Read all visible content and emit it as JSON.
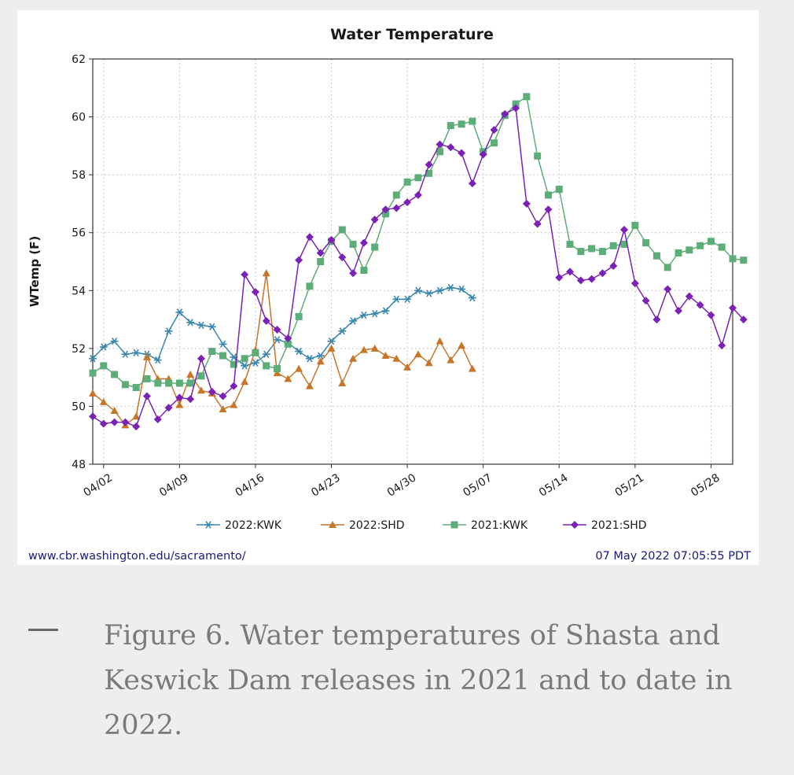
{
  "chart_data": {
    "type": "line",
    "title": "Water Temperature",
    "ylabel": "WTemp (F)",
    "xlabel": "",
    "ylim": [
      48,
      62
    ],
    "yticks": [
      48,
      50,
      52,
      54,
      56,
      58,
      60,
      62
    ],
    "x_start_label": "04/01",
    "x_end_day": 59,
    "xticks": [
      {
        "day": 1,
        "label": "04/02"
      },
      {
        "day": 8,
        "label": "04/09"
      },
      {
        "day": 15,
        "label": "04/16"
      },
      {
        "day": 22,
        "label": "04/23"
      },
      {
        "day": 29,
        "label": "04/30"
      },
      {
        "day": 36,
        "label": "05/07"
      },
      {
        "day": 43,
        "label": "05/14"
      },
      {
        "day": 50,
        "label": "05/21"
      },
      {
        "day": 57,
        "label": "05/28"
      }
    ],
    "series": [
      {
        "name": "2022:KWK",
        "color": "#3a87ad",
        "marker": "star",
        "values": [
          51.65,
          52.05,
          52.25,
          51.8,
          51.85,
          51.8,
          51.6,
          52.6,
          53.25,
          52.9,
          52.8,
          52.75,
          52.15,
          51.7,
          51.4,
          51.5,
          51.8,
          52.3,
          52.2,
          51.9,
          51.65,
          51.75,
          52.25,
          52.6,
          52.95,
          53.15,
          53.2,
          53.3,
          53.7,
          53.7,
          54.0,
          53.9,
          54.0,
          54.1,
          54.05,
          53.75
        ]
      },
      {
        "name": "2022:SHD",
        "color": "#c8752a",
        "marker": "triangle",
        "values": [
          50.45,
          50.15,
          49.85,
          49.35,
          49.65,
          51.7,
          50.95,
          50.95,
          50.05,
          51.1,
          50.55,
          50.45,
          49.9,
          50.05,
          50.85,
          51.95,
          54.6,
          51.15,
          50.95,
          51.3,
          50.7,
          51.55,
          52.0,
          50.8,
          51.65,
          51.95,
          52.0,
          51.75,
          51.65,
          51.35,
          51.8,
          51.5,
          52.25,
          51.6,
          52.1,
          51.3
        ]
      },
      {
        "name": "2021:KWK",
        "color": "#5cad78",
        "marker": "square",
        "values": [
          51.15,
          51.4,
          51.1,
          50.75,
          50.65,
          50.95,
          50.8,
          50.8,
          50.8,
          50.8,
          51.05,
          51.9,
          51.75,
          51.45,
          51.65,
          51.85,
          51.4,
          51.3,
          52.15,
          53.1,
          54.15,
          55.0,
          55.7,
          56.1,
          55.6,
          54.7,
          55.5,
          56.65,
          57.3,
          57.75,
          57.9,
          58.05,
          58.8,
          59.7,
          59.75,
          59.85,
          58.8,
          59.1,
          60.05,
          60.45,
          60.7,
          58.65,
          57.3,
          57.5,
          55.6,
          55.35,
          55.45,
          55.35,
          55.55,
          55.6,
          56.25,
          55.65,
          55.2,
          54.8,
          55.3,
          55.4,
          55.55,
          55.7,
          55.5,
          55.1,
          55.05
        ]
      },
      {
        "name": "2021:SHD",
        "color": "#7a22b5",
        "marker": "diamond",
        "values": [
          49.65,
          49.4,
          49.45,
          49.45,
          49.3,
          50.35,
          49.55,
          49.95,
          50.3,
          50.25,
          51.65,
          50.5,
          50.35,
          50.7,
          54.55,
          53.95,
          52.95,
          52.65,
          52.35,
          55.05,
          55.85,
          55.3,
          55.75,
          55.15,
          54.6,
          55.65,
          56.45,
          56.8,
          56.85,
          57.05,
          57.3,
          58.35,
          59.05,
          58.95,
          58.75,
          57.7,
          58.7,
          59.55,
          60.1,
          60.3,
          57.0,
          56.3,
          56.8,
          54.45,
          54.65,
          54.35,
          54.4,
          54.6,
          54.85,
          56.1,
          54.25,
          53.65,
          53.0,
          54.05,
          53.3,
          53.8,
          53.5,
          53.15,
          52.1,
          53.4,
          53.0
        ]
      }
    ],
    "legend_position": "bottom-center",
    "grid": true
  },
  "footer": {
    "url": "www.cbr.washington.edu/sacramento/",
    "timestamp": "07 May 2022 07:05:55 PDT"
  },
  "caption": {
    "text": "Figure 6. Water temperatures of Shasta and Keswick Dam releases in 2021 and to date in 2022."
  },
  "colors": {
    "text_dark": "#1a1a1a",
    "footer_text": "#1a1a7a",
    "caption_text": "#7a7a7a",
    "grid": "#c8c8c8"
  }
}
